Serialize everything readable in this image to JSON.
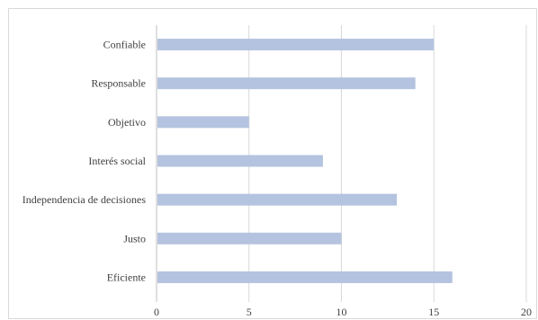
{
  "chart_data": {
    "type": "bar",
    "orientation": "horizontal",
    "categories": [
      "Confiable",
      "Responsable",
      "Objetivo",
      "Interés social",
      "Independencia de decisiones",
      "Justo",
      "Eficiente"
    ],
    "values": [
      15,
      14,
      5,
      9,
      13,
      10,
      16
    ],
    "xlim": [
      0,
      20
    ],
    "xticks": [
      "0",
      "5",
      "10",
      "15",
      "20"
    ],
    "grid": "vertical",
    "title": "",
    "xlabel": "",
    "ylabel": "",
    "bar_color": "#b4c3df",
    "grid_color": "#d9d9d9"
  }
}
